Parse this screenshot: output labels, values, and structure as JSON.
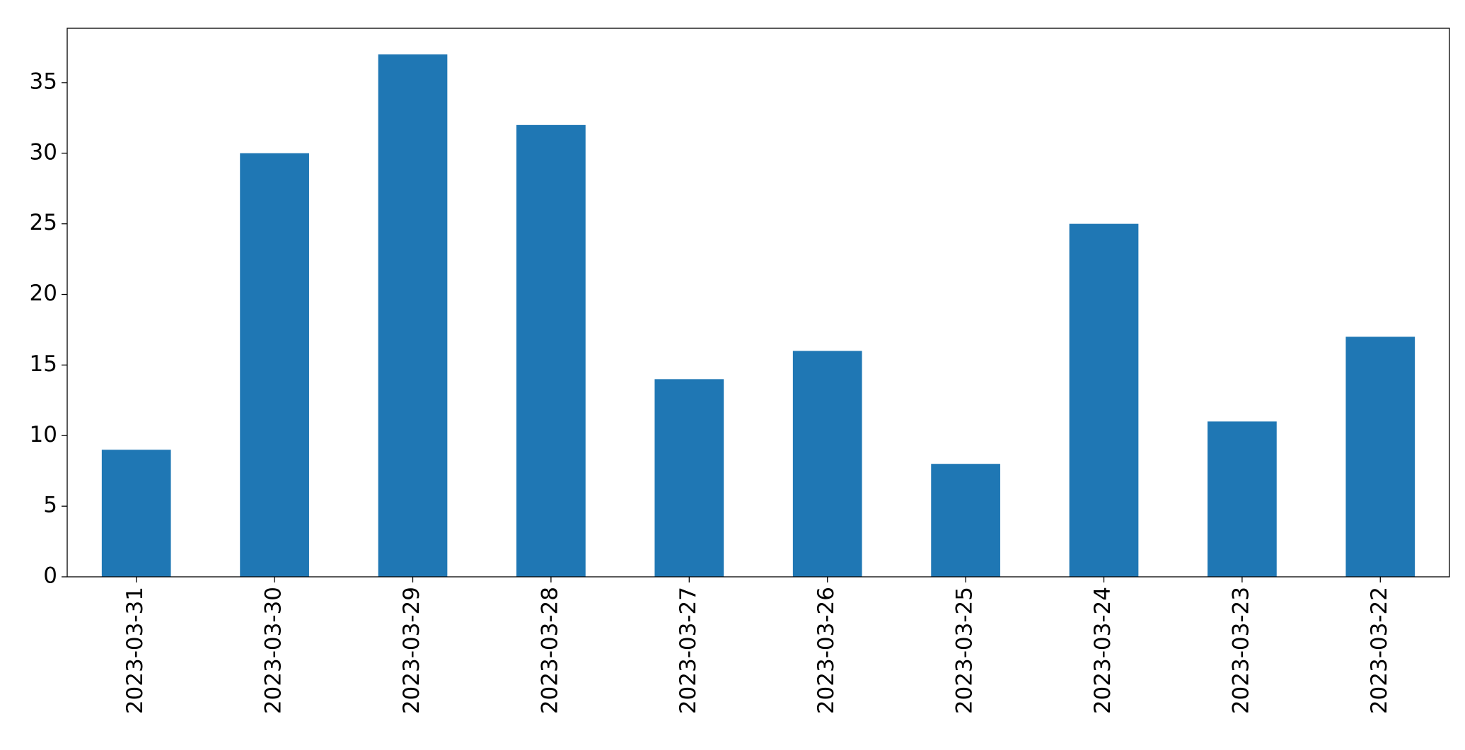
{
  "chart_data": {
    "type": "bar",
    "categories": [
      "2023-03-31",
      "2023-03-30",
      "2023-03-29",
      "2023-03-28",
      "2023-03-27",
      "2023-03-26",
      "2023-03-25",
      "2023-03-24",
      "2023-03-23",
      "2023-03-22"
    ],
    "values": [
      9,
      30,
      37,
      32,
      14,
      16,
      8,
      25,
      11,
      17
    ],
    "color": "#1f77b4",
    "ylim": [
      0,
      38.85
    ],
    "yticks": [
      0,
      5,
      10,
      15,
      20,
      25,
      30,
      35
    ],
    "grid": false
  }
}
